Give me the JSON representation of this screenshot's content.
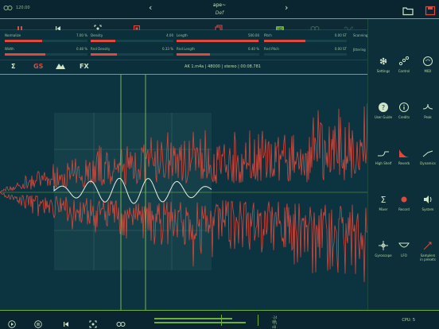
{
  "topbar": {
    "bpm": "120.00",
    "title": "ape~",
    "subtitle": "Def",
    "left_icon": "loop-link-icon",
    "prev_icon": "chevron-left-icon",
    "next_icon": "chevron-right-icon",
    "folder_icon": "folder-icon",
    "save_icon": "save-icon"
  },
  "transport": {
    "buttons": [
      {
        "name": "pause-icon"
      },
      {
        "name": "skip-back-icon"
      },
      {
        "name": "focus-icon"
      },
      {
        "name": "stop-square-icon"
      },
      {
        "name": "copy-icon"
      },
      {
        "name": "hd-video-icon"
      },
      {
        "name": "loop-icon"
      },
      {
        "name": "wave-icon"
      }
    ]
  },
  "params": [
    {
      "label": "Normalize",
      "value": "7.00 %",
      "fraction": 0.45
    },
    {
      "label": "Density",
      "value": "4.00",
      "fraction": 0.3
    },
    {
      "label": "Length",
      "value": "500.00",
      "fraction": 0.99
    },
    {
      "label": "Pitch",
      "value": "0.00 ST",
      "fraction": 0.5
    },
    {
      "label": "Width",
      "value": "0.48 %",
      "fraction": 0.49
    },
    {
      "label": "Rnd Density",
      "value": "0.33 %",
      "fraction": 0.32
    },
    {
      "label": "Rnd Length",
      "value": "0.40 %",
      "fraction": 0.4
    },
    {
      "label": "Rnd Pitch",
      "value": "0.00 ST",
      "fraction": 0.0
    }
  ],
  "params_extra": {
    "label1": "Scanning",
    "label2": "Jittering"
  },
  "modes": {
    "sum": "Σ",
    "gs": "GS",
    "fx": "FX",
    "info": "AK 1.m4a  |  48000  |  stereo  |  00:08.781"
  },
  "sidebar": [
    {
      "label": "Settings",
      "icon": "gear-icon"
    },
    {
      "label": "Control",
      "icon": "control-nodes-icon"
    },
    {
      "label": "MIDI",
      "icon": "midi-icon"
    },
    {
      "label": "User Guide",
      "icon": "help-icon"
    },
    {
      "label": "Credits",
      "icon": "info-icon"
    },
    {
      "label": "Peak",
      "icon": "peak-icon"
    },
    {
      "label": "High Shelf",
      "icon": "high-shelf-icon"
    },
    {
      "label": "Reverb",
      "icon": "reverb-icon"
    },
    {
      "label": "Dynamics",
      "icon": "dynamics-icon"
    },
    {
      "label": "Mixer",
      "icon": "sigma-icon"
    },
    {
      "label": "Record",
      "icon": "record-icon"
    },
    {
      "label": "System",
      "icon": "speaker-icon"
    },
    {
      "label": "Gyroscope",
      "icon": "gyroscope-icon"
    },
    {
      "label": "LFO",
      "icon": "lfo-icon"
    },
    {
      "label": "Samplers\nin presets",
      "icon": "samplers-icon"
    }
  ],
  "bottom": {
    "buttons": [
      {
        "name": "play-icon"
      },
      {
        "name": "pause-icon"
      },
      {
        "name": "skip-back-icon"
      },
      {
        "name": "focus-icon"
      },
      {
        "name": "loop-icon"
      }
    ],
    "db_top": "-24 dB",
    "db_bottom": "-11 dB",
    "cpu": "CPU: 5",
    "meter_top": 0.7,
    "meter_bottom": 0.82
  }
}
